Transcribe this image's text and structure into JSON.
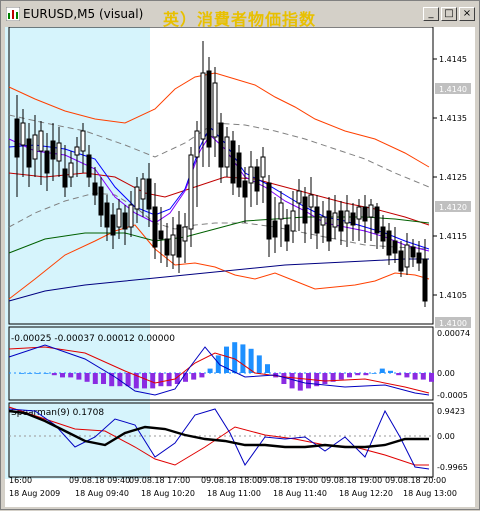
{
  "window": {
    "title": "EURUSD,M5 (visual)",
    "overlay_title": "英）消費者物価指数",
    "controls": {
      "minimize_glyph": "_",
      "maximize_glyph": "□",
      "close_glyph": "×"
    }
  },
  "colors": {
    "bull_candle": "#ffffff",
    "bear_candle": "#000000",
    "highlight_band": "#d6f4fc",
    "bollinger": "#ff4000",
    "ma_dark_blue": "#000080",
    "ma_green": "#006000",
    "macd_hist_up": "#1e90ff",
    "macd_hist_down": "#8a2be2",
    "spearman_main": "#000000"
  },
  "main_panel": {
    "price_labels": [
      "1.4145",
      "1.4135",
      "1.4125",
      "1.4115",
      "1.4105"
    ],
    "price_badges": [
      "1.4140",
      "1.4120",
      "1.4100"
    ]
  },
  "macd_panel": {
    "label": "-0.00025 -0.00037 0.00012 0.00000",
    "axis_labels": [
      "0.00074",
      "0.00",
      "-0.0005"
    ]
  },
  "spearman_panel": {
    "label": "Spearman(9) 0.1708",
    "axis_labels": [
      "0.9423",
      "0.00",
      "-0.9965"
    ]
  },
  "time_axis": {
    "top_row": [
      "16:00",
      "09.08.18",
      "09.08.18",
      "09.08.18",
      "09.08.18",
      "09.08.18",
      "09.08.18"
    ],
    "top_row_times": [
      "",
      "09:40",
      "17:00",
      "18:00",
      "19:00",
      "19:00",
      "20:00"
    ],
    "bottom_row": [
      "18 Aug 2009",
      "18 Aug 09:40",
      "18 Aug 10:20",
      "18 Aug 11:00",
      "18 Aug 11:40",
      "18 Aug 12:20",
      "18 Aug 13:00"
    ]
  }
}
